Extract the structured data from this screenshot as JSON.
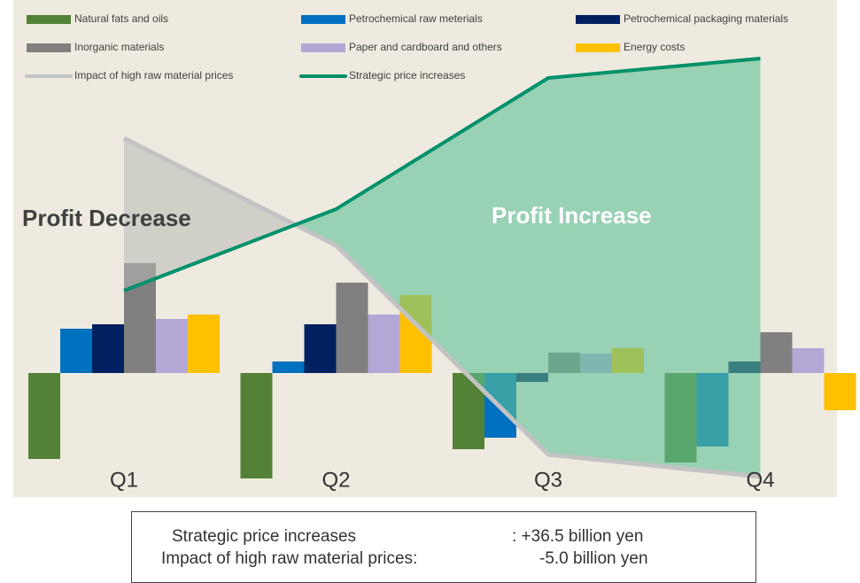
{
  "chart_data": {
    "type": "bar",
    "categories": [
      "Q1",
      "Q2",
      "Q3",
      "Q4"
    ],
    "ylim": [
      -140,
      421
    ],
    "series": [
      {
        "name": "Natural fats and oils",
        "type": "bar",
        "color": "#538135",
        "values": [
          -97,
          -119,
          -86,
          -101
        ]
      },
      {
        "name": "Petrochemical raw meterials",
        "type": "bar",
        "color": "#0070c0",
        "values": [
          50,
          13,
          -73,
          -83
        ]
      },
      {
        "name": "Petrochemical packaging materials",
        "type": "bar",
        "color": "#002060",
        "values": [
          55,
          55,
          -10,
          13
        ]
      },
      {
        "name": "Inorganic materials",
        "type": "bar",
        "color": "#808080",
        "values": [
          124,
          102,
          23,
          46
        ]
      },
      {
        "name": "Paper and cardboard and others",
        "type": "bar",
        "color": "#b4a7d6",
        "values": [
          61,
          66,
          22,
          28
        ]
      },
      {
        "name": "Energy costs",
        "type": "bar",
        "color": "#ffc000",
        "values": [
          66,
          88,
          28,
          -42
        ]
      },
      {
        "name": "Impact of high raw material prices",
        "type": "line",
        "color": "#c3c3c3",
        "values": [
          265,
          144,
          -92,
          -117
        ]
      },
      {
        "name": "Strategic price increases",
        "type": "line",
        "color": "#00906c",
        "values": [
          93,
          185,
          333,
          355
        ]
      }
    ],
    "annotations": [
      "Profit Decrease",
      "Profit Increase"
    ],
    "summary": [
      {
        "label": "Strategic price increases",
        "text": ": +36.5 billion yen"
      },
      {
        "label": "Impact of high raw material prices:",
        "text": "-5.0 billion yen"
      }
    ]
  }
}
